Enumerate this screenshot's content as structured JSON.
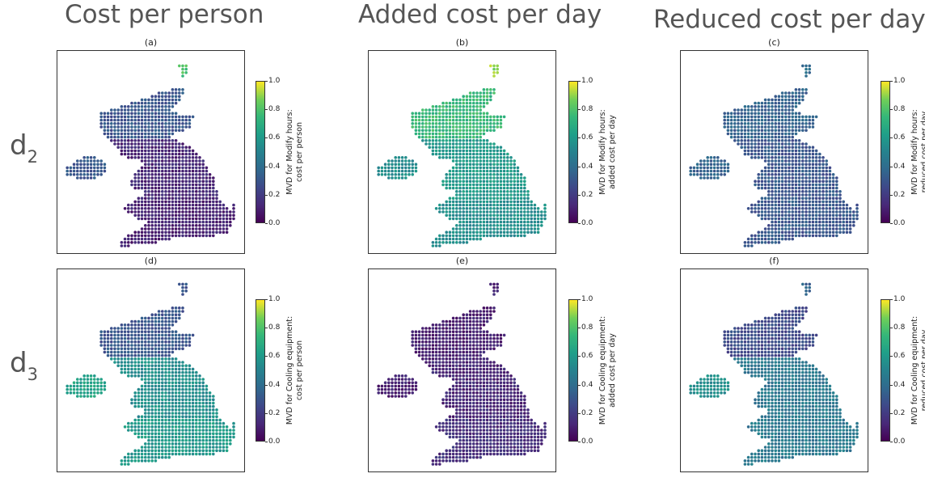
{
  "column_titles": [
    "Cost per person",
    "Added cost per day",
    "Reduced cost per day"
  ],
  "row_labels": [
    {
      "base": "d",
      "sub": "2"
    },
    {
      "base": "d",
      "sub": "3"
    }
  ],
  "colormap": [
    "#440154",
    "#482878",
    "#3e4989",
    "#31688e",
    "#26828e",
    "#1f9e89",
    "#35b779",
    "#6ece58",
    "#fde725"
  ],
  "chart_data": [
    {
      "type": "scatter",
      "panel": "(a)",
      "title": "(a)",
      "colorbar_label": [
        "MVD for Modify hours:",
        "cost per person"
      ],
      "colorbar_range": [
        0.0,
        1.0
      ],
      "colorbar_ticks": [
        "0.0",
        "0.2",
        "0.4",
        "0.6",
        "0.8",
        "1.0"
      ],
      "typical_value": 0.12,
      "region_values": {
        "north": 0.3,
        "middle": 0.12,
        "south": 0.1,
        "ireland": 0.3,
        "islands": 0.8
      }
    },
    {
      "type": "scatter",
      "panel": "(b)",
      "title": "(b)",
      "colorbar_label": [
        "MVD for Modify hours:",
        "added cost per day"
      ],
      "colorbar_range": [
        0.0,
        1.0
      ],
      "colorbar_ticks": [
        "0.0",
        "0.2",
        "0.4",
        "0.6",
        "0.8",
        "1.0"
      ],
      "typical_value": 0.55,
      "region_values": {
        "north": 0.75,
        "middle": 0.6,
        "south": 0.55,
        "ireland": 0.55,
        "islands": 0.9
      }
    },
    {
      "type": "scatter",
      "panel": "(c)",
      "title": "(c)",
      "colorbar_label": [
        "MVD for Modify hours:",
        "reduced cost per day"
      ],
      "colorbar_range": [
        0.0,
        1.0
      ],
      "colorbar_ticks": [
        "0.0",
        "0.2",
        "0.4",
        "0.6",
        "0.8",
        "1.0"
      ],
      "typical_value": 0.3,
      "region_values": {
        "north": 0.35,
        "middle": 0.3,
        "south": 0.3,
        "ireland": 0.35,
        "islands": 0.4
      }
    },
    {
      "type": "scatter",
      "panel": "(d)",
      "title": "(d)",
      "colorbar_label": [
        "MVD for Cooling equipment:",
        "cost per person"
      ],
      "colorbar_range": [
        0.0,
        1.0
      ],
      "colorbar_ticks": [
        "0.0",
        "0.2",
        "0.4",
        "0.6",
        "0.8",
        "1.0"
      ],
      "typical_value": 0.6,
      "region_values": {
        "north": 0.3,
        "middle": 0.55,
        "south": 0.6,
        "ireland": 0.65,
        "islands": 0.3
      }
    },
    {
      "type": "scatter",
      "panel": "(e)",
      "title": "(e)",
      "colorbar_label": [
        "MVD for Cooling equipment:",
        "added cost per day"
      ],
      "colorbar_range": [
        0.0,
        1.0
      ],
      "colorbar_ticks": [
        "0.0",
        "0.2",
        "0.4",
        "0.6",
        "0.8",
        "1.0"
      ],
      "typical_value": 0.12,
      "region_values": {
        "north": 0.1,
        "middle": 0.12,
        "south": 0.15,
        "ireland": 0.1,
        "islands": 0.1
      }
    },
    {
      "type": "scatter",
      "panel": "(f)",
      "title": "(f)",
      "colorbar_label": [
        "MVD for Cooling equipment:",
        "reduced cost per day"
      ],
      "colorbar_range": [
        0.0,
        1.0
      ],
      "colorbar_ticks": [
        "0.0",
        "0.2",
        "0.4",
        "0.6",
        "0.8",
        "1.0"
      ],
      "typical_value": 0.4,
      "region_values": {
        "north": 0.25,
        "middle": 0.45,
        "south": 0.45,
        "ireland": 0.55,
        "islands": 0.35
      }
    }
  ]
}
